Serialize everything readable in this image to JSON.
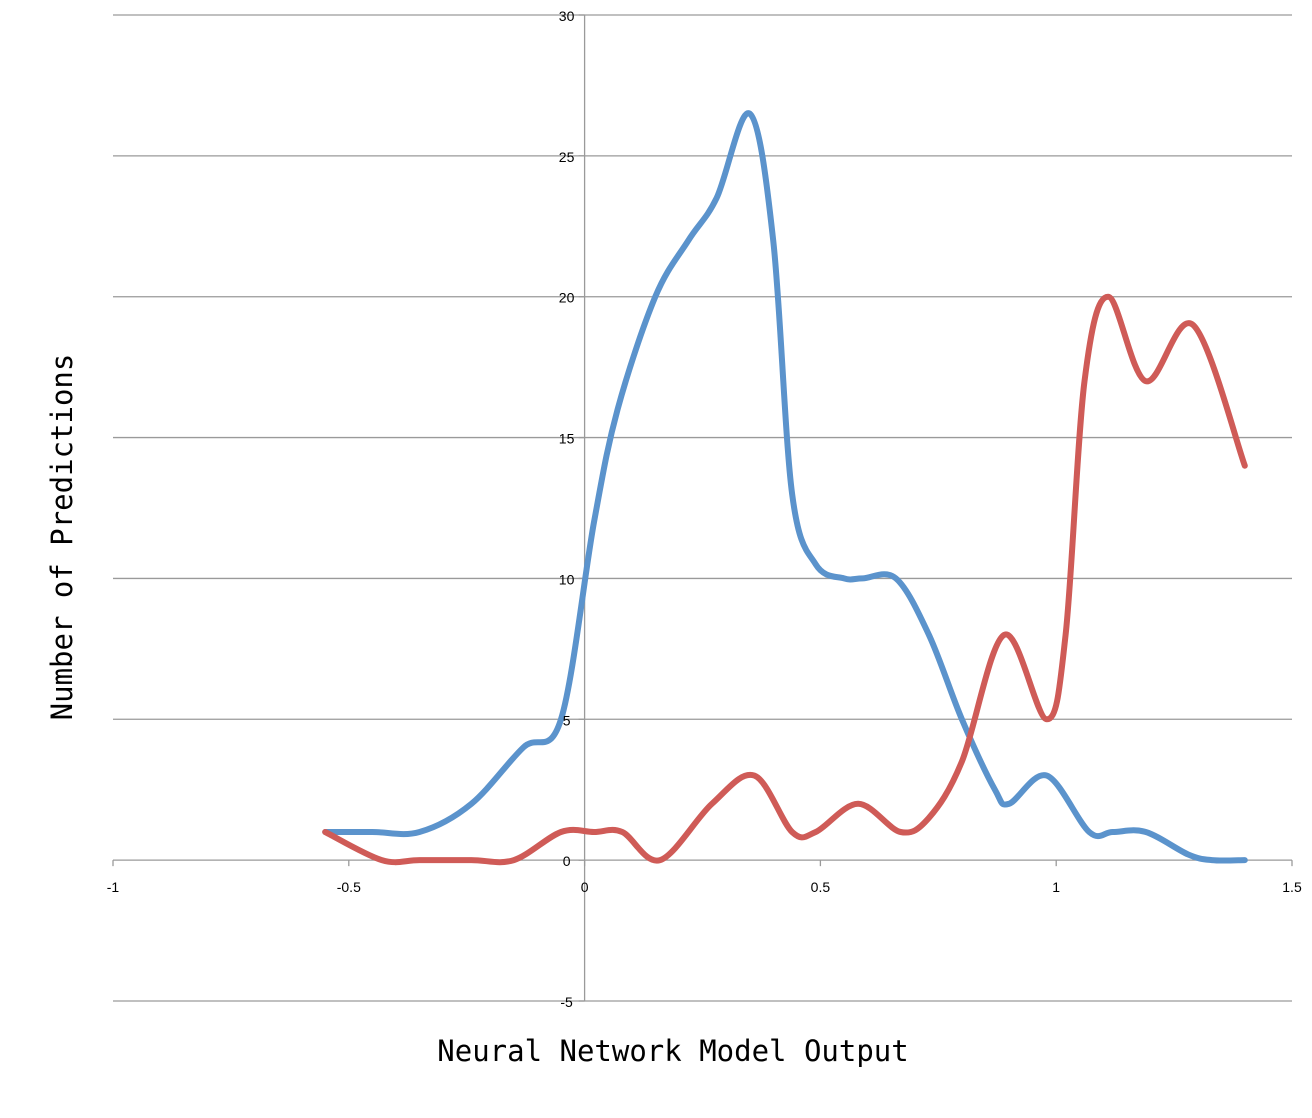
{
  "chart_data": {
    "type": "line",
    "title": "",
    "xlabel": "Neural Network Model Output",
    "ylabel": "Number of Predictions",
    "xlim": [
      -1,
      1.5
    ],
    "ylim": [
      -5,
      30
    ],
    "xticks": [
      -1,
      -0.5,
      0,
      0.5,
      1,
      1.5
    ],
    "xtick_labels": [
      "-1",
      "-0.5",
      "0",
      "0.5",
      "1",
      "1.5"
    ],
    "yticks": [
      -5,
      0,
      5,
      10,
      15,
      20,
      25,
      30
    ],
    "ytick_labels": [
      "-5",
      "0",
      "5",
      "10",
      "15",
      "20",
      "25",
      "30"
    ],
    "grid": true,
    "smooth": true,
    "series": [
      {
        "color": "#5b93cc",
        "x": [
          -0.55,
          -0.45,
          -0.35,
          -0.24,
          -0.13,
          -0.05,
          0.02,
          0.07,
          0.15,
          0.22,
          0.28,
          0.35,
          0.4,
          0.44,
          0.49,
          0.55,
          0.59,
          0.66,
          0.73,
          0.8,
          0.87,
          0.9,
          0.98,
          1.07,
          1.12,
          1.19,
          1.28,
          1.33,
          1.4
        ],
        "y": [
          1,
          1,
          1,
          2,
          4,
          5,
          12,
          16,
          20,
          22,
          23.5,
          26.5,
          22,
          13,
          10.5,
          10,
          10,
          10,
          8,
          5,
          2.5,
          2,
          3,
          1,
          1,
          1,
          0.2,
          0,
          0
        ]
      },
      {
        "color": "#cf5b57",
        "x": [
          -0.55,
          -0.43,
          -0.35,
          -0.24,
          -0.15,
          -0.05,
          0.02,
          0.08,
          0.16,
          0.27,
          0.36,
          0.44,
          0.49,
          0.58,
          0.67,
          0.73,
          0.8,
          0.89,
          0.98,
          1.02,
          1.06,
          1.11,
          1.19,
          1.29,
          1.4
        ],
        "y": [
          1,
          0,
          0,
          0,
          0,
          1,
          1,
          1,
          0,
          2,
          3,
          1,
          1,
          2,
          1,
          1.5,
          3.5,
          8,
          5,
          8,
          17,
          20,
          17,
          19,
          14
        ]
      }
    ]
  }
}
